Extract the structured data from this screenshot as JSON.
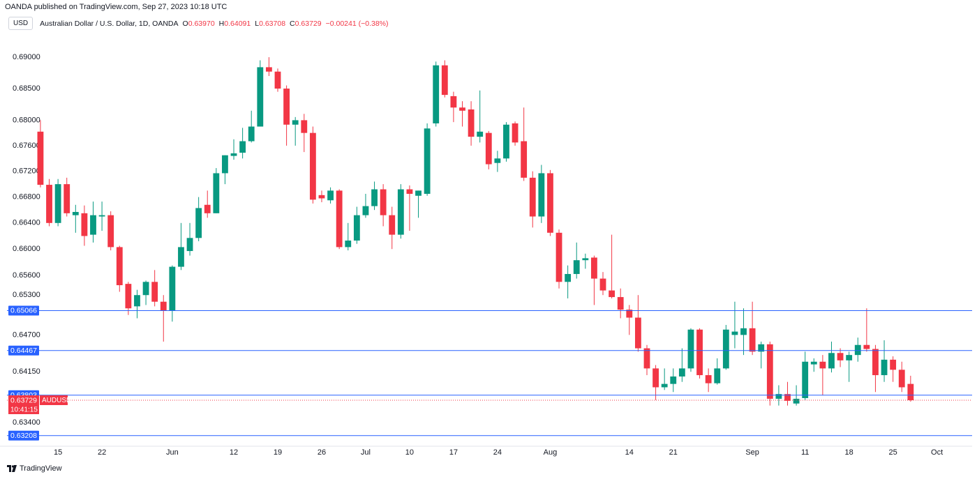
{
  "header": {
    "publisher": "OANDA published on TradingView.com, Sep 27, 2023 10:18 UTC"
  },
  "chart_data": {
    "type": "candlestick",
    "currency": "USD",
    "symbol_title": "Australian Dollar / U.S. Dollar, 1D, OANDA",
    "legend": {
      "o_label": "O",
      "o": "0.63970",
      "h_label": "H",
      "h": "0.64091",
      "l_label": "L",
      "l": "0.63708",
      "c_label": "C",
      "c": "0.63729",
      "change": "−0.00241 (−0.38%)"
    },
    "up_color": "#089981",
    "down_color": "#f23645",
    "log_scale": true,
    "ylim": [
      0.63053,
      0.69414
    ],
    "yticks": [
      {
        "value": 0.69,
        "label": "0.69000"
      },
      {
        "value": 0.685,
        "label": "0.68500"
      },
      {
        "value": 0.68,
        "label": "0.68000"
      },
      {
        "value": 0.676,
        "label": "0.67600"
      },
      {
        "value": 0.672,
        "label": "0.67200"
      },
      {
        "value": 0.668,
        "label": "0.66800"
      },
      {
        "value": 0.664,
        "label": "0.66400"
      },
      {
        "value": 0.66,
        "label": "0.66000"
      },
      {
        "value": 0.656,
        "label": "0.65600"
      },
      {
        "value": 0.653,
        "label": "0.65300"
      },
      {
        "value": 0.647,
        "label": "0.64700"
      },
      {
        "value": 0.6415,
        "label": "0.64150"
      },
      {
        "value": 0.634,
        "label": "0.63400"
      }
    ],
    "xlim": [
      -4.6,
      106
    ],
    "xticks": [
      {
        "value": 2,
        "label": "15"
      },
      {
        "value": 7,
        "label": "22"
      },
      {
        "value": 15,
        "label": "Jun"
      },
      {
        "value": 22,
        "label": "12"
      },
      {
        "value": 27,
        "label": "19"
      },
      {
        "value": 32,
        "label": "26"
      },
      {
        "value": 37,
        "label": "Jul"
      },
      {
        "value": 42,
        "label": "10"
      },
      {
        "value": 47,
        "label": "17"
      },
      {
        "value": 52,
        "label": "24"
      },
      {
        "value": 58,
        "label": "Aug"
      },
      {
        "value": 67,
        "label": "14"
      },
      {
        "value": 72,
        "label": "21"
      },
      {
        "value": 81,
        "label": "Sep"
      },
      {
        "value": 87,
        "label": "11"
      },
      {
        "value": 92,
        "label": "18"
      },
      {
        "value": 97,
        "label": "25"
      },
      {
        "value": 102,
        "label": "Oct"
      }
    ],
    "series": {
      "open": [
        0.6782,
        0.6699,
        0.664,
        0.67,
        0.6652,
        0.6655,
        0.6622,
        0.665,
        0.6652,
        0.6603,
        0.6547,
        0.6513,
        0.653,
        0.655,
        0.652,
        0.6507,
        0.6573,
        0.6597,
        0.6617,
        0.6668,
        0.6655,
        0.6717,
        0.6744,
        0.6749,
        0.6767,
        0.679,
        0.6884,
        0.6877,
        0.685,
        0.6793,
        0.68,
        0.678,
        0.6683,
        0.6675,
        0.669,
        0.6603,
        0.6613,
        0.6652,
        0.6666,
        0.6692,
        0.6652,
        0.6622,
        0.6692,
        0.6682,
        0.6685,
        0.6795,
        0.6887,
        0.6838,
        0.682,
        0.6817,
        0.6774,
        0.678,
        0.6733,
        0.674,
        0.6795,
        0.6767,
        0.671,
        0.665,
        0.6717,
        0.6625,
        0.655,
        0.6562,
        0.6583,
        0.6587,
        0.6555,
        0.6537,
        0.6527,
        0.6508,
        0.6496,
        0.645,
        0.642,
        0.6392,
        0.6397,
        0.6408,
        0.642,
        0.6478,
        0.641,
        0.6398,
        0.642,
        0.647,
        0.647,
        0.648,
        0.6445,
        0.6456,
        0.6375,
        0.6382,
        0.6368,
        0.6376,
        0.6426,
        0.643,
        0.642,
        0.6443,
        0.6432,
        0.644,
        0.6455,
        0.6449,
        0.641,
        0.6433,
        0.6418,
        0.6397
      ],
      "high": [
        0.68,
        0.6708,
        0.6708,
        0.671,
        0.6668,
        0.6667,
        0.6673,
        0.6673,
        0.6658,
        0.6605,
        0.655,
        0.6538,
        0.6552,
        0.6568,
        0.653,
        0.6575,
        0.664,
        0.664,
        0.668,
        0.669,
        0.6725,
        0.6745,
        0.677,
        0.6788,
        0.6815,
        0.6895,
        0.69,
        0.6882,
        0.6855,
        0.6805,
        0.681,
        0.679,
        0.669,
        0.6695,
        0.6692,
        0.664,
        0.6665,
        0.6685,
        0.6704,
        0.67,
        0.6665,
        0.67,
        0.6698,
        0.669,
        0.6795,
        0.6893,
        0.6895,
        0.6845,
        0.683,
        0.683,
        0.6847,
        0.6783,
        0.6752,
        0.6797,
        0.6798,
        0.682,
        0.672,
        0.673,
        0.6722,
        0.663,
        0.6575,
        0.661,
        0.6593,
        0.659,
        0.6565,
        0.6622,
        0.654,
        0.6515,
        0.653,
        0.6455,
        0.6425,
        0.642,
        0.642,
        0.645,
        0.648,
        0.648,
        0.642,
        0.6435,
        0.6485,
        0.652,
        0.651,
        0.652,
        0.646,
        0.646,
        0.6395,
        0.64,
        0.6395,
        0.6445,
        0.6435,
        0.644,
        0.646,
        0.645,
        0.6445,
        0.6466,
        0.651,
        0.6455,
        0.6462,
        0.6438,
        0.643,
        0.64091
      ],
      "low": [
        0.6695,
        0.6635,
        0.6635,
        0.665,
        0.6625,
        0.6605,
        0.661,
        0.6628,
        0.6598,
        0.6535,
        0.65,
        0.6495,
        0.6515,
        0.6513,
        0.646,
        0.649,
        0.6568,
        0.659,
        0.6612,
        0.6648,
        0.6655,
        0.67,
        0.6738,
        0.674,
        0.6765,
        0.679,
        0.687,
        0.6845,
        0.676,
        0.676,
        0.675,
        0.667,
        0.6672,
        0.667,
        0.66,
        0.6598,
        0.6608,
        0.6648,
        0.666,
        0.6635,
        0.66,
        0.6616,
        0.6628,
        0.6648,
        0.6682,
        0.679,
        0.6836,
        0.6797,
        0.679,
        0.676,
        0.6765,
        0.6723,
        0.6719,
        0.6735,
        0.676,
        0.6705,
        0.6633,
        0.664,
        0.662,
        0.654,
        0.6525,
        0.6555,
        0.657,
        0.6515,
        0.653,
        0.6525,
        0.6495,
        0.647,
        0.6445,
        0.641,
        0.6373,
        0.6388,
        0.6385,
        0.64,
        0.6415,
        0.6405,
        0.6385,
        0.6396,
        0.6418,
        0.645,
        0.644,
        0.644,
        0.642,
        0.6365,
        0.6365,
        0.6365,
        0.6365,
        0.6373,
        0.6415,
        0.638,
        0.6414,
        0.6422,
        0.64,
        0.643,
        0.6445,
        0.6385,
        0.64,
        0.64,
        0.6385,
        0.63708
      ],
      "close": [
        0.6699,
        0.664,
        0.67,
        0.6655,
        0.6657,
        0.662,
        0.6652,
        0.6652,
        0.6603,
        0.6545,
        0.651,
        0.653,
        0.655,
        0.652,
        0.6507,
        0.6573,
        0.6603,
        0.6617,
        0.6663,
        0.6655,
        0.6717,
        0.6745,
        0.6748,
        0.6767,
        0.679,
        0.6884,
        0.6877,
        0.685,
        0.6793,
        0.68,
        0.678,
        0.6676,
        0.6678,
        0.669,
        0.6603,
        0.6613,
        0.6652,
        0.6666,
        0.6692,
        0.6652,
        0.6622,
        0.6692,
        0.6685,
        0.669,
        0.6787,
        0.6887,
        0.684,
        0.682,
        0.6815,
        0.6774,
        0.6782,
        0.6731,
        0.674,
        0.6793,
        0.6765,
        0.671,
        0.665,
        0.6717,
        0.6625,
        0.655,
        0.6562,
        0.6583,
        0.6586,
        0.6555,
        0.6537,
        0.6527,
        0.6508,
        0.6496,
        0.645,
        0.642,
        0.6392,
        0.6397,
        0.6408,
        0.642,
        0.6478,
        0.641,
        0.6398,
        0.642,
        0.6478,
        0.6475,
        0.648,
        0.6445,
        0.6456,
        0.6375,
        0.6382,
        0.6372,
        0.6375,
        0.643,
        0.643,
        0.642,
        0.6443,
        0.6432,
        0.644,
        0.6455,
        0.6449,
        0.641,
        0.6433,
        0.6418,
        0.6392,
        0.63729
      ]
    },
    "hlines": {
      "color": "#2962ff",
      "levels": [
        {
          "value": 0.65066,
          "label": "0.65066"
        },
        {
          "value": 0.64467,
          "label": "0.64467"
        },
        {
          "value": 0.63803,
          "label": "0.63803"
        },
        {
          "value": 0.63208,
          "label": "0.63208"
        }
      ]
    },
    "last_price": {
      "value": 0.63729,
      "label": "0.63729",
      "symbol": "AUDUSD",
      "countdown": "10:41:15",
      "color": "#f23645"
    }
  },
  "footer": {
    "brand": "TradingView"
  }
}
